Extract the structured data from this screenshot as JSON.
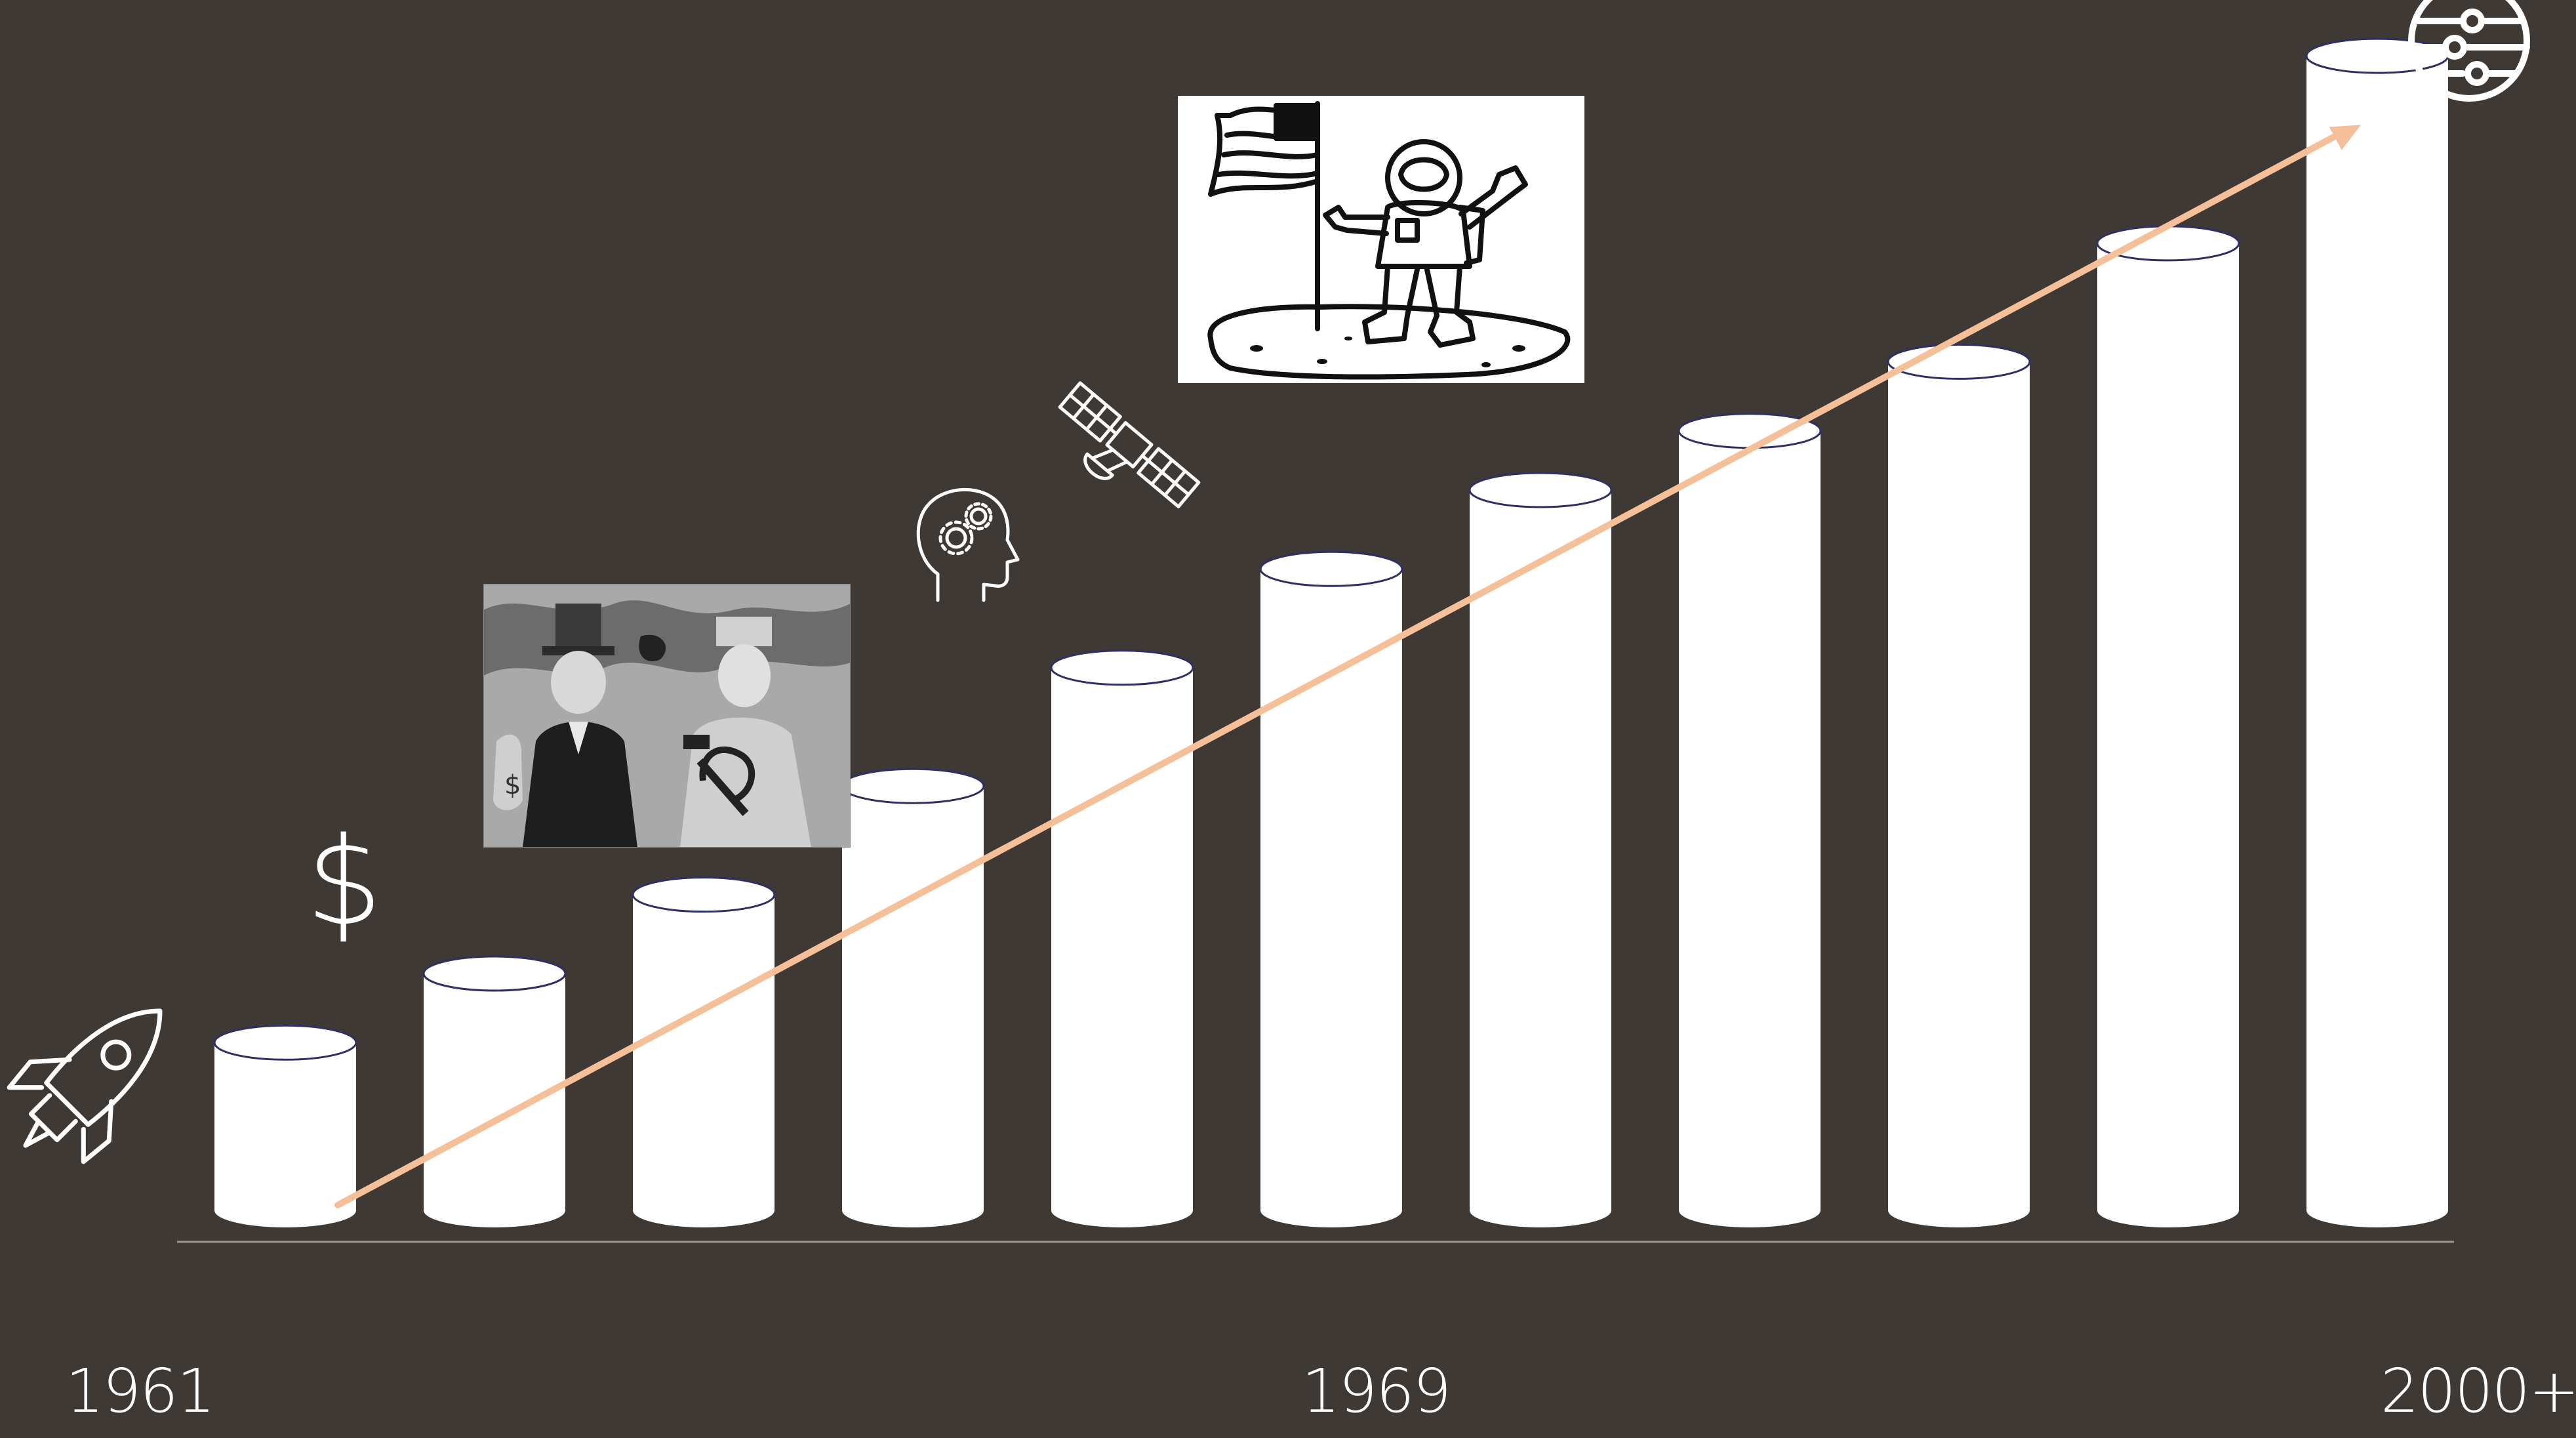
{
  "chart_data": {
    "type": "bar",
    "style": "cylinder",
    "bar_count": 11,
    "values": [
      0.17,
      0.24,
      0.32,
      0.43,
      0.55,
      0.65,
      0.73,
      0.79,
      0.86,
      0.98,
      1.17
    ],
    "ylim": [
      0,
      1.2
    ],
    "axis_labels": {
      "start": "1961",
      "middle": "1969",
      "end": "2000+"
    },
    "trend_line": {
      "from": 0.0,
      "to": 1.1,
      "color": "#f5bf98"
    },
    "grid": false,
    "legend": "none"
  },
  "colors": {
    "background": "#3e3935",
    "bar_fill": "#ffffff",
    "bar_outline": "#2f2f66",
    "trend_arrow": "#f5bf98",
    "baseline": "#9a9590"
  },
  "icons": {
    "rocket": "rocket-icon",
    "dollar": "dollar-icon",
    "cold_war_illustration": "cold-war-illustration",
    "head_gears": "head-gears-icon",
    "satellite": "satellite-icon",
    "moon_landing": "moon-landing-illustration",
    "planet": "planet-icon"
  }
}
